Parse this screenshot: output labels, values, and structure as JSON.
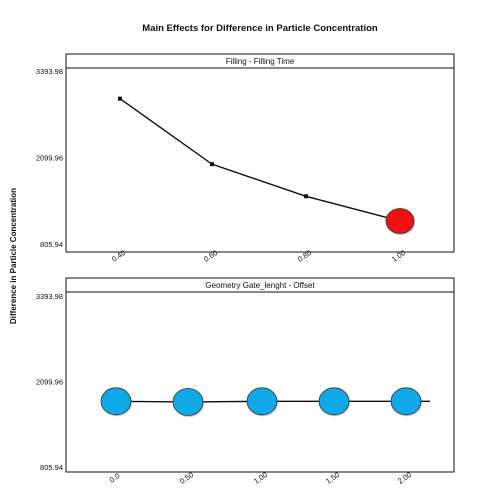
{
  "chart_data": [
    {
      "type": "line",
      "panel_title": "Filling - Filling Time",
      "title": "Main Effects for Difference in Particle Concentration",
      "ylabel": "Difference in Particle Concentration",
      "xlabel": "",
      "x_tick_labels": [
        "0.40",
        "0.60",
        "0.80",
        "1.00"
      ],
      "y_tick_labels": [
        "3393.98",
        "2099.96",
        "805.94"
      ],
      "ylim": [
        805.94,
        3393.98
      ],
      "series": [
        {
          "values": [
            2980,
            2000,
            1520,
            1150
          ]
        }
      ],
      "highlight": {
        "index": 3,
        "color": "#ee1111"
      },
      "marker_color": "#111111",
      "line_color": "#111111",
      "grid": false
    },
    {
      "type": "line",
      "panel_title": "Geometry Gate_lenght - Offset",
      "xlabel": "",
      "x_tick_labels": [
        "0.0",
        "0.50",
        "1.00",
        "1.50",
        "2.00"
      ],
      "y_tick_labels": [
        "3393.98",
        "2099.96",
        "805.94"
      ],
      "ylim": [
        805.94,
        3393.98
      ],
      "series": [
        {
          "values": [
            1800,
            1790,
            1800,
            1800,
            1800
          ]
        }
      ],
      "marker_color": "#11a8e8",
      "line_color": "#111111",
      "grid": false
    }
  ]
}
